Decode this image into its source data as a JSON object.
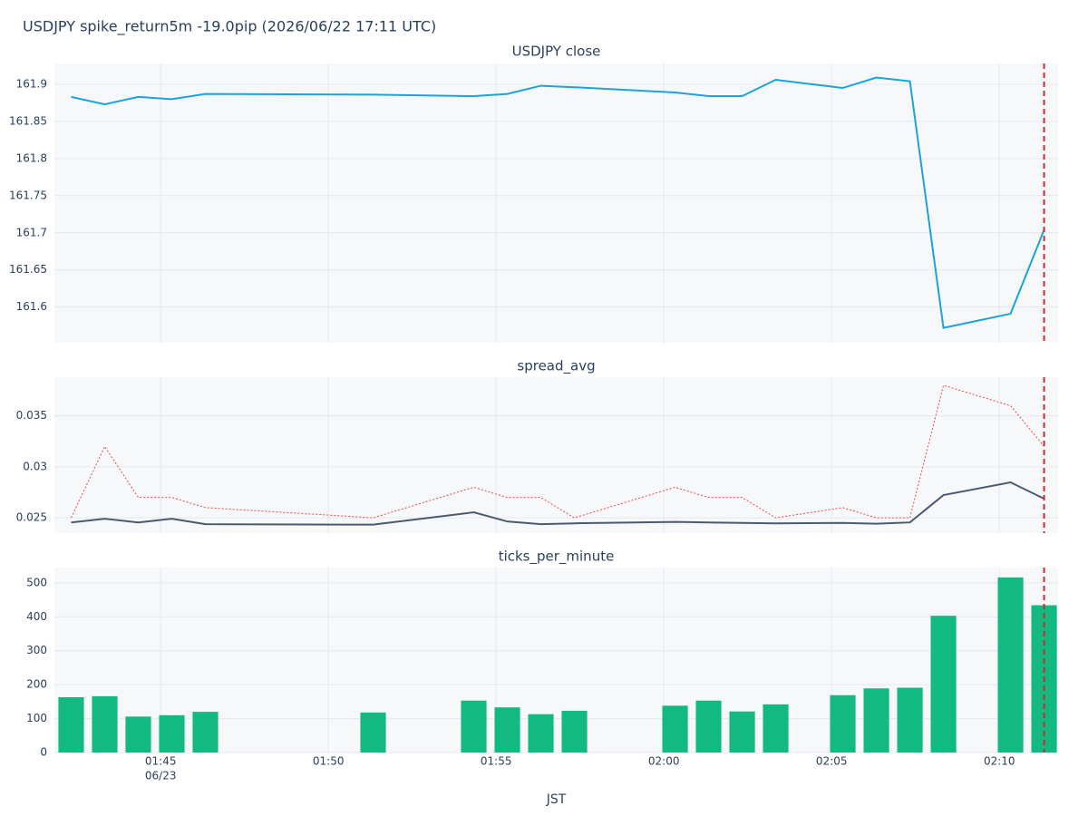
{
  "title": "USDJPY spike_return5m -19.0pip (2026/06/22 17:11 UTC)",
  "chart_data": [
    {
      "type": "line",
      "title": "USDJPY close",
      "x": [
        "01:42:20",
        "01:43:20",
        "01:44:20",
        "01:45:20",
        "01:46:20",
        "01:51:20",
        "01:54:20",
        "01:55:20",
        "01:56:20",
        "01:57:20",
        "02:00:20",
        "02:01:20",
        "02:02:20",
        "02:03:20",
        "02:05:20",
        "02:06:20",
        "02:07:20",
        "02:08:20",
        "02:10:20",
        "02:11:20"
      ],
      "xlim": [
        "01:41:50",
        "02:11:45"
      ],
      "xticks": [
        "01:45:00",
        "01:50:00",
        "01:55:00",
        "02:00:00",
        "02:05:00",
        "02:10:00"
      ],
      "series": [
        {
          "color": "#1ba3de",
          "dash": "solid",
          "values": [
            161.883,
            161.873,
            161.883,
            161.88,
            161.887,
            161.886,
            161.884,
            161.887,
            161.898,
            161.896,
            161.889,
            161.884,
            161.884,
            161.906,
            161.895,
            161.909,
            161.904,
            161.572,
            161.591,
            161.704
          ]
        }
      ],
      "ylim": [
        161.552,
        161.928
      ],
      "yticks": [
        161.6,
        161.65,
        161.7,
        161.75,
        161.8,
        161.85,
        161.9
      ],
      "grid": true,
      "vline": {
        "x": "02:11:20",
        "color": "#d62728"
      }
    },
    {
      "type": "line",
      "title": "spread_avg",
      "x": [
        "01:42:20",
        "01:43:20",
        "01:44:20",
        "01:45:20",
        "01:46:20",
        "01:51:20",
        "01:54:20",
        "01:55:20",
        "01:56:20",
        "01:57:20",
        "02:00:20",
        "02:01:20",
        "02:02:20",
        "02:03:20",
        "02:05:20",
        "02:06:20",
        "02:07:20",
        "02:08:20",
        "02:10:20",
        "02:11:20"
      ],
      "xlim": [
        "01:41:50",
        "02:11:45"
      ],
      "xticks": [
        "01:45:00",
        "01:50:00",
        "01:55:00",
        "02:00:00",
        "02:05:00",
        "02:10:00"
      ],
      "series": [
        {
          "color": "#4a5a70",
          "dash": "solid",
          "values": [
            0.02455,
            0.02491,
            0.02455,
            0.02491,
            0.02438,
            0.02433,
            0.02554,
            0.02464,
            0.02438,
            0.02446,
            0.0246,
            0.02455,
            0.0245,
            0.02446,
            0.0245,
            0.02442,
            0.02455,
            0.02723,
            0.02848,
            0.02688
          ]
        },
        {
          "color": "#ef4a4a",
          "dash": "dot",
          "values": [
            0.025,
            0.032,
            0.027,
            0.027,
            0.026,
            0.025,
            0.028,
            0.027,
            0.027,
            0.025,
            0.028,
            0.027,
            0.027,
            0.025,
            0.026,
            0.025,
            0.025,
            0.038,
            0.036,
            0.032
          ]
        }
      ],
      "ylim": [
        0.0235,
        0.0388
      ],
      "yticks": [
        0.025,
        0.03,
        0.035
      ],
      "grid": true,
      "vline": {
        "x": "02:11:20",
        "color": "#d62728"
      }
    },
    {
      "type": "bar",
      "title": "ticks_per_minute",
      "x": [
        "01:42:20",
        "01:43:20",
        "01:44:20",
        "01:45:20",
        "01:46:20",
        "01:51:20",
        "01:54:20",
        "01:55:20",
        "01:56:20",
        "01:57:20",
        "02:00:20",
        "02:01:20",
        "02:02:20",
        "02:03:20",
        "02:05:20",
        "02:06:20",
        "02:07:20",
        "02:08:20",
        "02:10:20",
        "02:11:20"
      ],
      "xlim": [
        "01:41:50",
        "02:11:45"
      ],
      "xticks": [
        {
          "value": "01:45:00",
          "label": "01:45"
        },
        {
          "value": "01:50:00",
          "label": "01:50"
        },
        {
          "value": "01:55:00",
          "label": "01:55"
        },
        {
          "value": "02:00:00",
          "label": "02:00"
        },
        {
          "value": "02:05:00",
          "label": "02:05"
        },
        {
          "value": "02:10:00",
          "label": "02:10"
        }
      ],
      "xtick_date": "06/23",
      "xlabel": "JST",
      "series": [
        {
          "color": "#12b981",
          "values": [
            163,
            166,
            106,
            110,
            120,
            118,
            153,
            133,
            113,
            123,
            138,
            153,
            121,
            142,
            169,
            189,
            191,
            403,
            516,
            434
          ]
        }
      ],
      "ylim": [
        0,
        545
      ],
      "yticks": [
        0,
        100,
        200,
        300,
        400,
        500
      ],
      "grid": true,
      "vline": {
        "x": "02:11:20",
        "color": "#d62728"
      }
    }
  ]
}
